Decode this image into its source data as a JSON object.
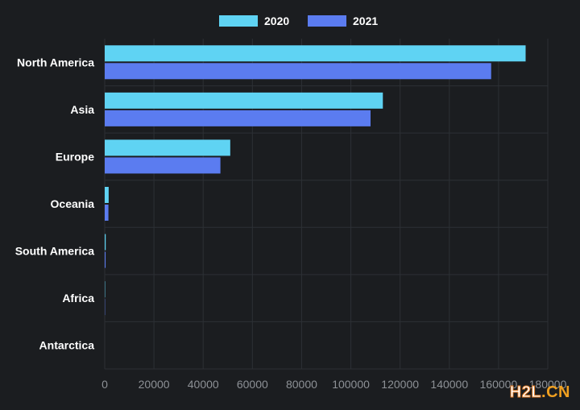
{
  "chart_data": {
    "type": "bar",
    "orientation": "horizontal",
    "title": "",
    "xlabel": "",
    "ylabel": "",
    "categories": [
      "North America",
      "Asia",
      "Europe",
      "Oceania",
      "South America",
      "Africa",
      "Antarctica"
    ],
    "series": [
      {
        "name": "2020",
        "color": "#5fd3f3",
        "values": [
          171000,
          113000,
          51000,
          1600,
          400,
          150,
          0
        ]
      },
      {
        "name": "2021",
        "color": "#5b7cf0",
        "values": [
          157000,
          108000,
          47000,
          1500,
          350,
          120,
          0
        ]
      }
    ],
    "xlim": [
      0,
      180000
    ],
    "xticks": [
      0,
      20000,
      40000,
      60000,
      80000,
      100000,
      120000,
      140000,
      160000,
      180000
    ],
    "grid": true,
    "legend": "top-center"
  },
  "watermark": {
    "part1": "H2L",
    "part2": ".CN"
  },
  "colors": {
    "background": "#1b1d20",
    "grid": "#2c3035",
    "axis_text": "#8d9196",
    "label_text": "#ffffff"
  }
}
